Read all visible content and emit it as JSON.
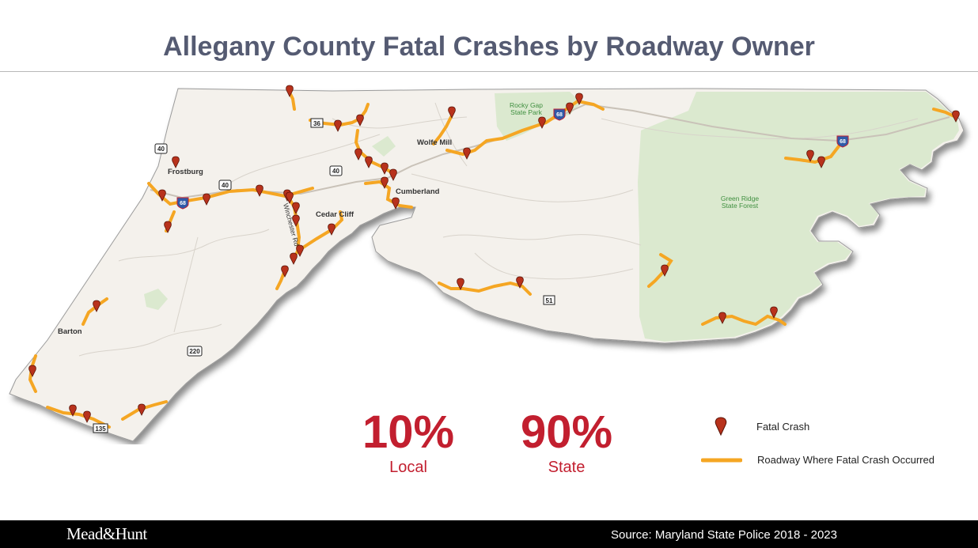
{
  "title": "Allegany County Fatal Crashes by Roadway Owner",
  "map": {
    "places": [
      "Frostburg",
      "Wolfe Mill",
      "Cumberland",
      "Cedar Cliff",
      "Barton"
    ],
    "road_label": "Winchester Rd",
    "parks": {
      "rocky_gap_line1": "Rocky Gap",
      "rocky_gap_line2": "State Park",
      "green_ridge_line1": "Green Ridge",
      "green_ridge_line2": "State Forest"
    },
    "shields": {
      "us40": "40",
      "us40_b": "40",
      "us40_c": "40",
      "md36": "36",
      "i68_a": "68",
      "i68_b": "68",
      "i68_c": "68",
      "us220": "220",
      "md135": "135",
      "md51": "51"
    },
    "colors": {
      "land": "#f4f1ec",
      "forest": "#dbe9cf",
      "road": "#f5a623",
      "crash": "#b8321c",
      "interstate": "#2f5aa8"
    }
  },
  "stats": [
    {
      "pct": "10%",
      "label": "Local"
    },
    {
      "pct": "90%",
      "label": "State"
    }
  ],
  "legend": {
    "crash_label": "Fatal Crash",
    "road_label": "Roadway Where Fatal Crash Occurred"
  },
  "footer": {
    "logo": "Mead&Hunt",
    "source": "Source: Maryland State Police 2018 - 2023"
  }
}
